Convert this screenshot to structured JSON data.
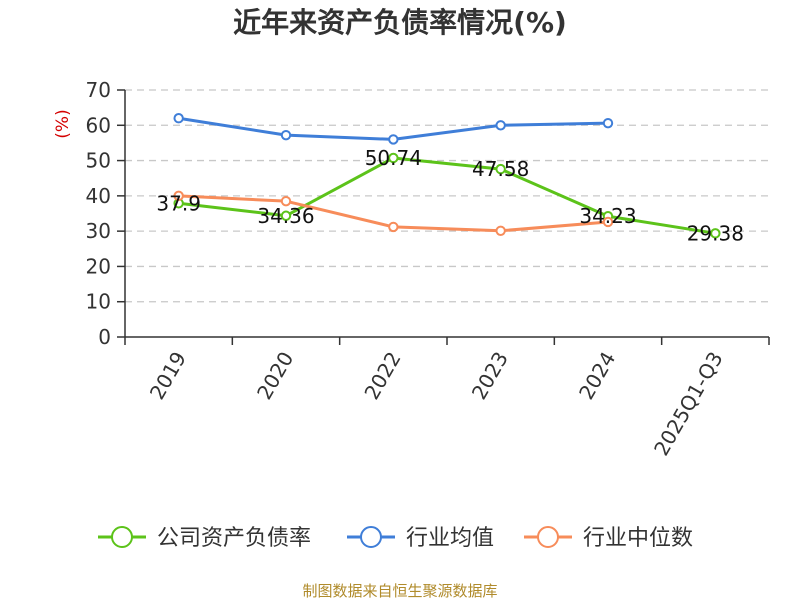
{
  "chart_data": {
    "type": "line",
    "title": "近年来资产负债率情况(%)",
    "ylabel": "(%)",
    "xlabel": "",
    "categories": [
      "2019",
      "2020",
      "2022",
      "2023",
      "2024",
      "2025Q1-Q3"
    ],
    "yticks": [
      "0",
      "10",
      "20",
      "30",
      "40",
      "50",
      "60",
      "70"
    ],
    "ylim": [
      0,
      70
    ],
    "grid": "horizontal-dashed",
    "legend_position": "bottom",
    "series": [
      {
        "name": "公司资产负债率",
        "color": "#5cc31a",
        "values": [
          37.9,
          34.36,
          50.74,
          47.58,
          34.23,
          29.38
        ],
        "labels": [
          "37.9",
          "34.36",
          "50.74",
          "47.58",
          "34.23",
          "29.38"
        ]
      },
      {
        "name": "行业均值",
        "color": "#3f7ed8",
        "values": [
          62,
          57.2,
          56,
          60,
          60.6,
          null
        ]
      },
      {
        "name": "行业中位数",
        "color": "#f78c5a",
        "values": [
          40,
          38.5,
          31.2,
          30.1,
          32.6,
          null
        ]
      }
    ]
  },
  "source": "制图数据来自恒生聚源数据库"
}
